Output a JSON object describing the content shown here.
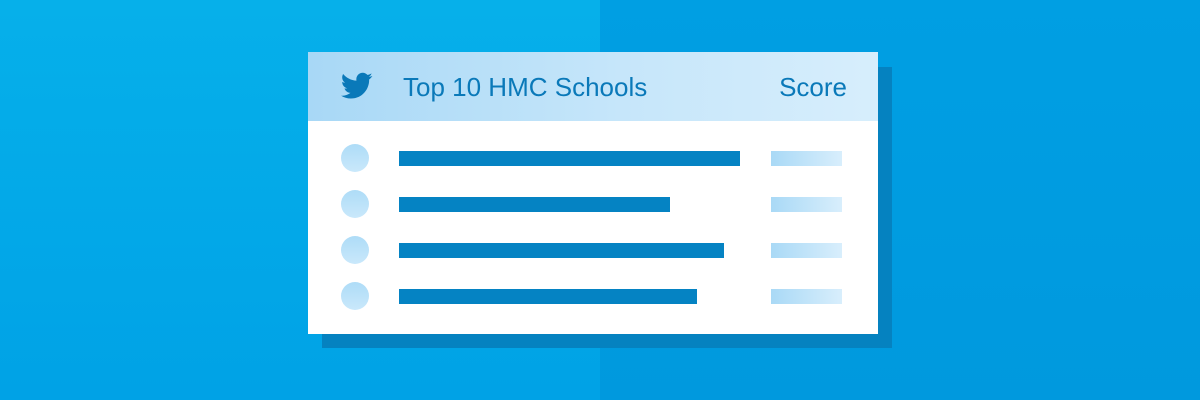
{
  "header": {
    "icon": "twitter-bird-icon",
    "title": "Top 10 HMC Schools",
    "score_label": "Score"
  },
  "rows": [
    {
      "bar_fraction": 1.0
    },
    {
      "bar_fraction": 0.795
    },
    {
      "bar_fraction": 0.953
    },
    {
      "bar_fraction": 0.874
    }
  ],
  "colors": {
    "background": "#00a2e6",
    "card": "#ffffff",
    "card_shadow": "#0582c0",
    "header": "#c6e6fa",
    "accent": "#0583c3",
    "text": "#0a79b9",
    "placeholder": "#aedcf7"
  }
}
